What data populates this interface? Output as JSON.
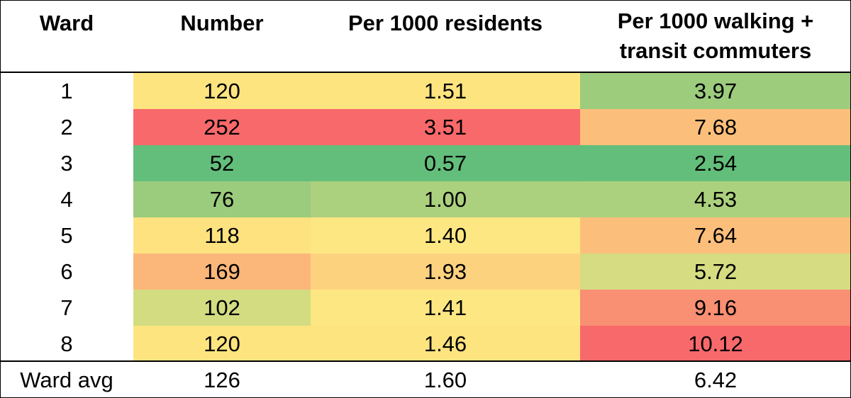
{
  "chart_data": {
    "type": "table",
    "columns": [
      "Ward",
      "Number",
      "Per 1000 residents",
      "Per 1000 walking + transit commuters"
    ],
    "header_walk_line1": "Per 1000 walking +",
    "header_walk_line2": "transit commuters",
    "rows": [
      {
        "ward": "1",
        "number": "120",
        "residents": "1.51",
        "walk": "3.97"
      },
      {
        "ward": "2",
        "number": "252",
        "residents": "3.51",
        "walk": "7.68"
      },
      {
        "ward": "3",
        "number": "52",
        "residents": "0.57",
        "walk": "2.54"
      },
      {
        "ward": "4",
        "number": "76",
        "residents": "1.00",
        "walk": "4.53"
      },
      {
        "ward": "5",
        "number": "118",
        "residents": "1.40",
        "walk": "7.64"
      },
      {
        "ward": "6",
        "number": "169",
        "residents": "1.93",
        "walk": "5.72"
      },
      {
        "ward": "7",
        "number": "102",
        "residents": "1.41",
        "walk": "9.16"
      },
      {
        "ward": "8",
        "number": "120",
        "residents": "1.46",
        "walk": "10.12"
      }
    ],
    "colors": [
      {
        "number": "#fde47f",
        "residents": "#fde47f",
        "walk": "#9ccc7c"
      },
      {
        "number": "#f8696b",
        "residents": "#f8696b",
        "walk": "#fbbf7b"
      },
      {
        "number": "#63be7b",
        "residents": "#63be7b",
        "walk": "#63be7b"
      },
      {
        "number": "#9bcb7c",
        "residents": "#abd07e",
        "walk": "#acd17e"
      },
      {
        "number": "#fee280",
        "residents": "#fde782",
        "walk": "#fbbf7b"
      },
      {
        "number": "#fbb77a",
        "residents": "#fdd27f",
        "walk": "#d5dc81"
      },
      {
        "number": "#d3dc81",
        "residents": "#fde782",
        "walk": "#f98f73"
      },
      {
        "number": "#fde47f",
        "residents": "#fde47f",
        "walk": "#f8696b"
      }
    ],
    "average": {
      "ward": "Ward avg",
      "number": "126",
      "residents": "1.60",
      "walk": "6.42"
    }
  }
}
